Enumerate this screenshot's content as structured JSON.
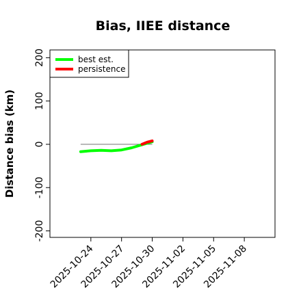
{
  "chart_data": {
    "type": "line",
    "title": "Bias, IIEE distance",
    "xlabel": "",
    "ylabel": "Distance bias (km)",
    "x_tick_labels": [
      "2025-10-24",
      "2025-10-27",
      "2025-10-30",
      "2025-11-02",
      "2025-11-05",
      "2025-11-08"
    ],
    "y_ticks": [
      -200,
      -100,
      0,
      100,
      200
    ],
    "y_tick_labels": [
      "-200",
      "-100",
      "0",
      "100",
      "200"
    ],
    "xlim": [
      "2025-10-20",
      "2025-11-11"
    ],
    "ylim": [
      -215,
      218
    ],
    "grid": false,
    "legend": "top-left",
    "reference_line": {
      "y": 0,
      "from": "2025-10-23",
      "to": "2025-10-30",
      "color": "#808080"
    },
    "series": [
      {
        "name": "best est.",
        "color": "#00ff00",
        "x": [
          "2025-10-23",
          "2025-10-24",
          "2025-10-25",
          "2025-10-26",
          "2025-10-27",
          "2025-10-28",
          "2025-10-29",
          "2025-10-30"
        ],
        "values": [
          -17,
          -15,
          -14,
          -15,
          -13,
          -8,
          -1,
          6
        ]
      },
      {
        "name": "persistence",
        "color": "#ff0000",
        "x": [
          "2025-10-29",
          "2025-10-29.5",
          "2025-10-30"
        ],
        "values": [
          0,
          5,
          8
        ]
      }
    ]
  }
}
